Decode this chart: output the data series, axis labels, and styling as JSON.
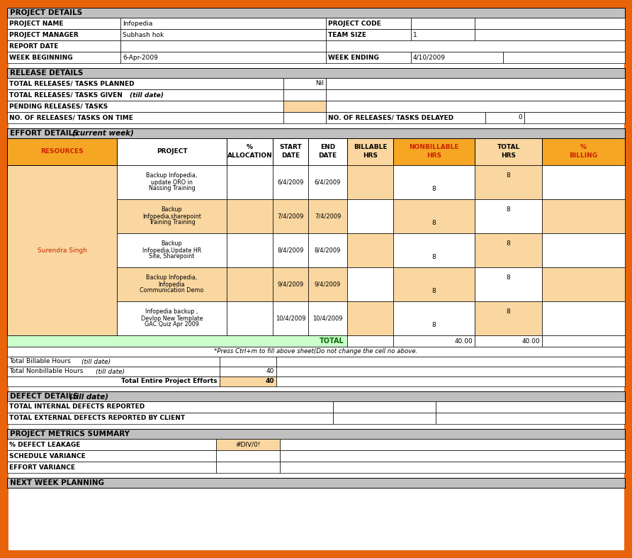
{
  "outer_border_color": "#E8630A",
  "background_color": "#FFFFFF",
  "gray": "#C0C0C0",
  "orange": "#F5A623",
  "light_orange": "#FAD7A0",
  "green": "#CCFFCC",
  "figure_bg": "#E8630A",
  "dark_orange": "#E8630A",
  "proj_name": "Infopedia",
  "proj_manager": "Subhash hok",
  "week_beginning": "6-Apr-2009",
  "week_ending": "4/10/2009",
  "team_size": "1",
  "effort_rows": [
    [
      "Backup Infopedia,\nupdate ORO in\nNassing Training",
      "",
      "6/4/2009",
      "6/4/2009",
      "",
      "8",
      "8",
      ""
    ],
    [
      "Backup\nInfopedia,sharepoint\nTraining Training",
      "",
      "7/4/2009",
      "7/4/2009",
      "",
      "8",
      "8",
      ""
    ],
    [
      "Backup\nInfopedia,Update HR\nSite, Sharepoint",
      "",
      "8/4/2009",
      "8/4/2009",
      "",
      "8",
      "8",
      ""
    ],
    [
      "Backup Infopedia,\nInfopedia\nCommunication Demo",
      "",
      "9/4/2009",
      "9/4/2009",
      "",
      "8",
      "8",
      ""
    ],
    [
      "Infopedia backup ,\nDevlop New Template\nGAC Quiz Apr 2009",
      "",
      "10/4/2009",
      "10/4/2009",
      "",
      "8",
      "8",
      ""
    ]
  ]
}
